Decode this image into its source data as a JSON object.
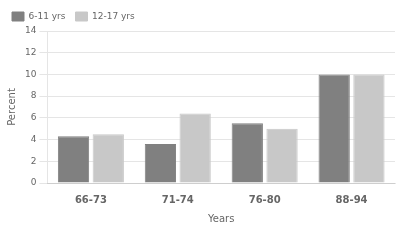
{
  "chart_data": {
    "type": "bar",
    "categories": [
      "66-73",
      "71-74",
      "76-80",
      "88-94"
    ],
    "series": [
      {
        "name": "6-11 yrs",
        "color": "#808080",
        "values": [
          4.3,
          3.6,
          5.5,
          10.0
        ]
      },
      {
        "name": "12-17 yrs",
        "color": "#c8c8c8",
        "values": [
          4.5,
          6.4,
          5.0,
          10.0
        ]
      }
    ],
    "xlabel": "Years",
    "ylabel": "Percent",
    "ylim": [
      0,
      14
    ],
    "yticks": [
      0,
      2,
      4,
      6,
      8,
      10,
      12,
      14
    ],
    "grid": true,
    "legend": "upper left"
  }
}
